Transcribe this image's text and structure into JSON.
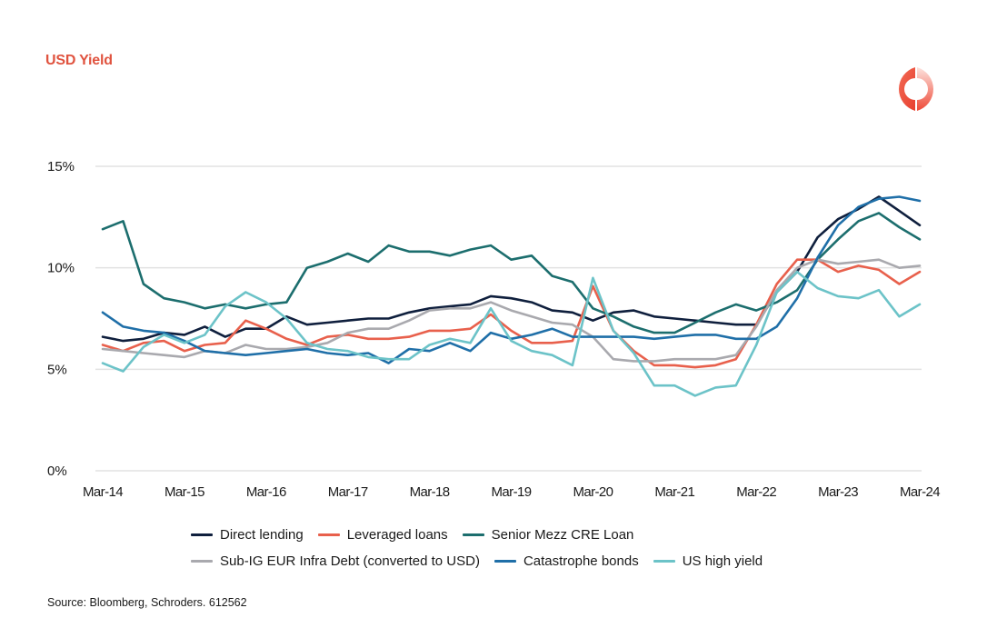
{
  "header": {
    "title": "USD Yield",
    "logo_icon": "schroders-ring-logo-icon"
  },
  "footer": {
    "source": "Source: Bloomberg, Schroders.  612562"
  },
  "chart_data": {
    "type": "line",
    "title": "USD Yield",
    "xlabel": "",
    "ylabel": "",
    "ylim": [
      0,
      15
    ],
    "y_ticks": [
      "0%",
      "5%",
      "10%",
      "15%"
    ],
    "y_tick_values": [
      0,
      5,
      10,
      15
    ],
    "x_tick_labels": [
      "Mar-14",
      "Mar-15",
      "Mar-16",
      "Mar-17",
      "Mar-18",
      "Mar-19",
      "Mar-20",
      "Mar-21",
      "Mar-22",
      "Mar-23",
      "Mar-24"
    ],
    "x_frequency": "quarterly",
    "x_start": "Mar-14",
    "x_end": "Mar-24",
    "grid": "horizontal",
    "legend_position": "bottom",
    "series": [
      {
        "name": "Direct lending",
        "color": "#0f1f3d",
        "values": [
          6.6,
          6.4,
          6.5,
          6.8,
          6.7,
          7.1,
          6.6,
          7.0,
          7.0,
          7.6,
          7.2,
          7.3,
          7.4,
          7.5,
          7.5,
          7.8,
          8.0,
          8.1,
          8.2,
          8.6,
          8.5,
          8.3,
          7.9,
          7.8,
          7.4,
          7.8,
          7.9,
          7.6,
          7.5,
          7.4,
          7.3,
          7.2,
          7.2,
          8.8,
          9.8,
          11.5,
          12.4,
          12.9,
          13.5,
          12.8,
          12.1
        ]
      },
      {
        "name": "Leveraged loans",
        "color": "#e8604c",
        "values": [
          6.2,
          5.9,
          6.3,
          6.4,
          5.9,
          6.2,
          6.3,
          7.4,
          7.0,
          6.5,
          6.2,
          6.6,
          6.7,
          6.5,
          6.5,
          6.6,
          6.9,
          6.9,
          7.0,
          7.7,
          6.9,
          6.3,
          6.3,
          6.4,
          9.1,
          6.9,
          5.9,
          5.2,
          5.2,
          5.1,
          5.2,
          5.5,
          7.2,
          9.2,
          10.4,
          10.4,
          9.8,
          10.1,
          9.9,
          9.2,
          9.8
        ]
      },
      {
        "name": "Senior Mezz CRE Loan",
        "color": "#1c6e6e",
        "values": [
          11.9,
          12.3,
          9.2,
          8.5,
          8.3,
          8.0,
          8.2,
          8.0,
          8.2,
          8.3,
          10.0,
          10.3,
          10.7,
          10.3,
          11.1,
          10.8,
          10.8,
          10.6,
          10.9,
          11.1,
          10.4,
          10.6,
          9.6,
          9.3,
          8.0,
          7.6,
          7.1,
          6.8,
          6.8,
          7.3,
          7.8,
          8.2,
          7.9,
          8.3,
          8.9,
          10.4,
          11.4,
          12.3,
          12.7,
          12.0,
          11.4
        ]
      },
      {
        "name": "Sub-IG EUR Infra Debt (converted to USD)",
        "color": "#a9a9ae",
        "values": [
          6.0,
          5.9,
          5.8,
          5.7,
          5.6,
          5.9,
          5.8,
          6.2,
          6.0,
          6.0,
          6.1,
          6.3,
          6.8,
          7.0,
          7.0,
          7.4,
          7.9,
          8.0,
          8.0,
          8.3,
          7.9,
          7.6,
          7.3,
          7.2,
          6.6,
          5.5,
          5.4,
          5.4,
          5.5,
          5.5,
          5.5,
          5.7,
          7.1,
          8.9,
          10.0,
          10.4,
          10.2,
          10.3,
          10.4,
          10.0,
          10.1
        ]
      },
      {
        "name": "Catastrophe bonds",
        "color": "#1f6fa8",
        "values": [
          7.8,
          7.1,
          6.9,
          6.8,
          6.4,
          5.9,
          5.8,
          5.7,
          5.8,
          5.9,
          6.0,
          5.8,
          5.7,
          5.8,
          5.3,
          6.0,
          5.9,
          6.3,
          5.9,
          6.8,
          6.5,
          6.7,
          7.0,
          6.6,
          6.6,
          6.6,
          6.6,
          6.5,
          6.6,
          6.7,
          6.7,
          6.5,
          6.5,
          7.1,
          8.5,
          10.5,
          12.1,
          13.0,
          13.4,
          13.5,
          13.3
        ]
      },
      {
        "name": "US high yield",
        "color": "#6cc3c8",
        "values": [
          5.3,
          4.9,
          6.1,
          6.7,
          6.3,
          6.7,
          8.1,
          8.8,
          8.3,
          7.5,
          6.3,
          6.0,
          5.9,
          5.6,
          5.5,
          5.5,
          6.2,
          6.5,
          6.3,
          8.0,
          6.4,
          5.9,
          5.7,
          5.2,
          9.5,
          6.9,
          5.8,
          4.2,
          4.2,
          3.7,
          4.1,
          4.2,
          6.2,
          8.8,
          9.8,
          9.0,
          8.6,
          8.5,
          8.9,
          7.6,
          8.2
        ]
      }
    ]
  }
}
